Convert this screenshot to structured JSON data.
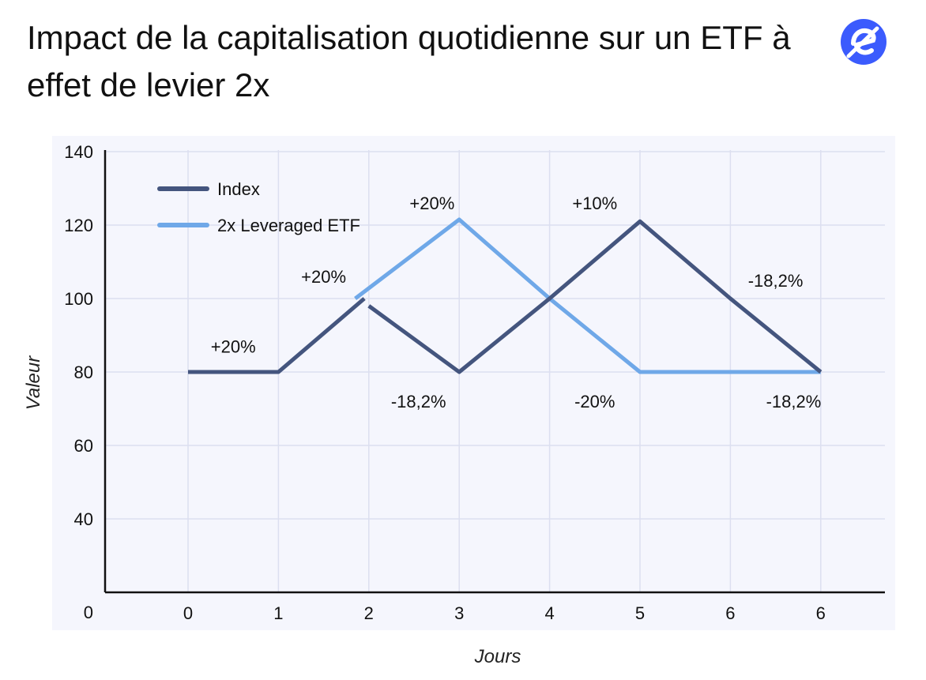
{
  "header": {
    "title": "Impact de la capitalisation quotidienne sur un ETF à effet de levier 2x"
  },
  "brand": {
    "icon": "e-logo-icon",
    "color": "#3b5bfd"
  },
  "chart_data": {
    "type": "line",
    "xlabel": "Jours",
    "ylabel": "Valeur",
    "ylim": [
      0,
      140
    ],
    "y_ticks": [
      0,
      40,
      60,
      80,
      100,
      120,
      140
    ],
    "x_tick_labels": [
      "0",
      "1",
      "2",
      "3",
      "4",
      "5",
      "6",
      "6"
    ],
    "grid": true,
    "legend_position": "top-left",
    "series": [
      {
        "name": "Index",
        "color": "#44557e",
        "segments": [
          [
            [
              0,
              80
            ],
            [
              1,
              80
            ],
            [
              1.95,
              100
            ]
          ],
          [
            [
              2,
              98
            ],
            [
              3,
              80
            ],
            [
              4,
              100
            ],
            [
              5,
              121
            ],
            [
              6,
              100
            ],
            [
              7,
              80
            ]
          ]
        ]
      },
      {
        "name": "2x Leveraged ETF",
        "color": "#6fa8e8",
        "segments": [
          [
            [
              1.85,
              100
            ],
            [
              3,
              121.5
            ],
            [
              4,
              100
            ],
            [
              5,
              80
            ],
            [
              7,
              80
            ]
          ]
        ]
      }
    ],
    "annotations": [
      {
        "text": "+20%",
        "x": 0.5,
        "y": 87
      },
      {
        "text": "+20%",
        "x": 1.5,
        "y": 106
      },
      {
        "text": "+20%",
        "x": 2.7,
        "y": 126
      },
      {
        "text": "-18,2%",
        "x": 2.55,
        "y": 72
      },
      {
        "text": "+10%",
        "x": 4.5,
        "y": 126
      },
      {
        "text": "-20%",
        "x": 4.5,
        "y": 72
      },
      {
        "text": "-18,2%",
        "x": 6.5,
        "y": 105
      },
      {
        "text": "-18,2%",
        "x": 6.7,
        "y": 72
      }
    ]
  }
}
